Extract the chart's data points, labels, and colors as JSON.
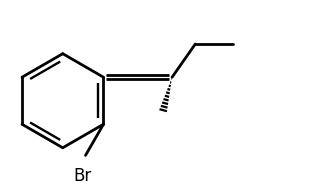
{
  "line_color": "#000000",
  "bg_color": "#ffffff",
  "line_width": 2.0,
  "fig_width": 3.28,
  "fig_height": 1.9,
  "dpi": 100,
  "br_label": "Br",
  "br_fontsize": 12
}
